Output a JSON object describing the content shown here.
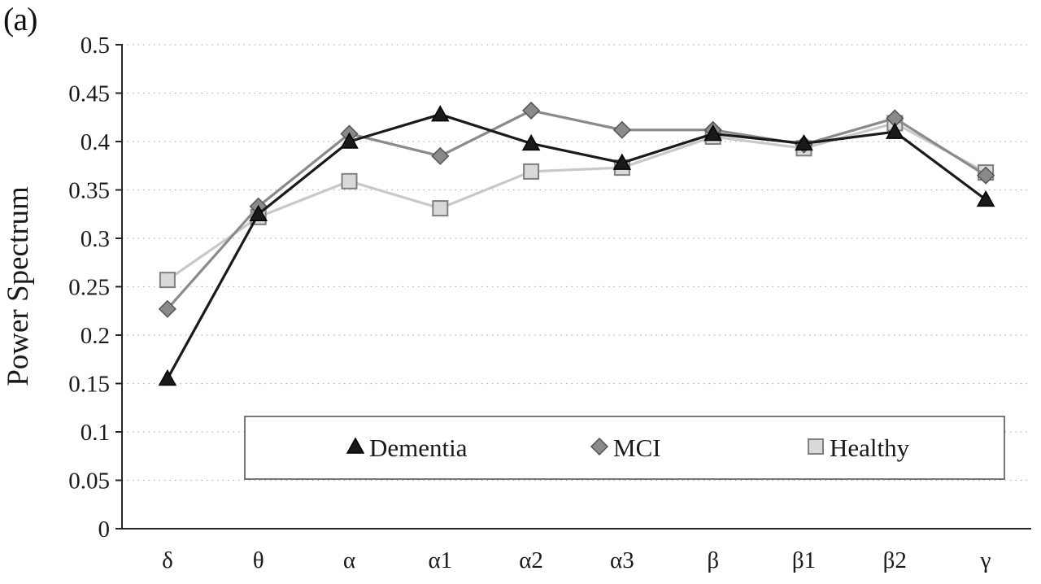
{
  "figure": {
    "panel_label": "(a)"
  },
  "chart_data": {
    "type": "line",
    "title": "",
    "xlabel": "",
    "ylabel": "Power Spectrum",
    "ylim": [
      0,
      0.5
    ],
    "ytick_step": 0.05,
    "grid": "horizontal-dotted",
    "legend_position": "inside-bottom",
    "categories": [
      "δ",
      "θ",
      "α",
      "α1",
      "α2",
      "α3",
      "β",
      "β1",
      "β2",
      "γ"
    ],
    "yticks": [
      "0",
      "0.05",
      "0.1",
      "0.15",
      "0.2",
      "0.25",
      "0.3",
      "0.35",
      "0.4",
      "0.45",
      "0.5"
    ],
    "series": [
      {
        "name": "Dementia",
        "marker": "triangle",
        "line_color": "#1a1a1a",
        "fill_color": "#1a1a1a",
        "edge_color": "#000000",
        "values": [
          0.155,
          0.325,
          0.4,
          0.428,
          0.398,
          0.378,
          0.408,
          0.398,
          0.41,
          0.34
        ]
      },
      {
        "name": "MCI",
        "marker": "diamond",
        "line_color": "#8a8a8a",
        "fill_color": "#8a8a8a",
        "edge_color": "#545454",
        "values": [
          0.227,
          0.333,
          0.408,
          0.385,
          0.432,
          0.412,
          0.412,
          0.397,
          0.424,
          0.365
        ]
      },
      {
        "name": "Healthy",
        "marker": "square",
        "line_color": "#c8c8c8",
        "fill_color": "#d9d9d9",
        "edge_color": "#7f7f7f",
        "values": [
          0.257,
          0.322,
          0.359,
          0.331,
          0.369,
          0.373,
          0.405,
          0.393,
          0.419,
          0.368
        ]
      }
    ]
  }
}
